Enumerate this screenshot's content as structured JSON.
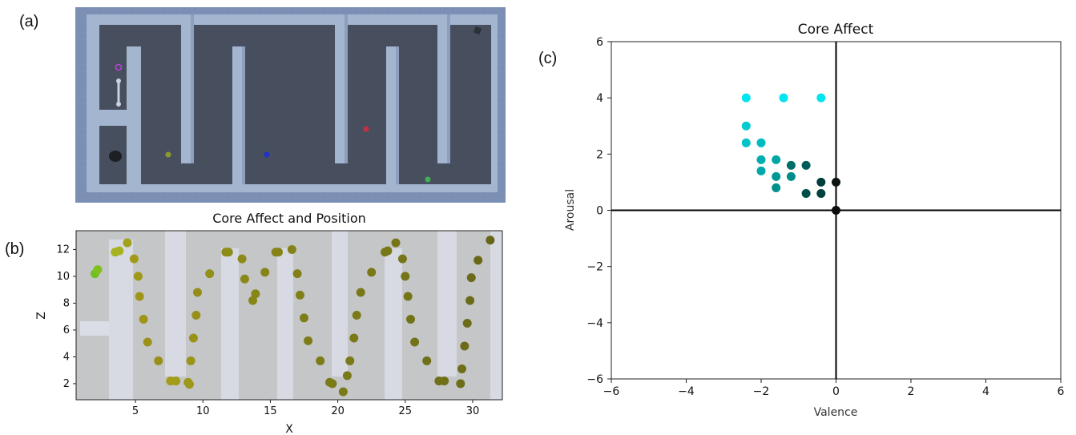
{
  "panels": {
    "a": "(a)",
    "b": "(b)",
    "c": "(c)"
  },
  "colors": {
    "maze_bg": "#7b8fb5",
    "maze_floor": "#474f5f",
    "maze_wall": "#a4b5d0",
    "plot_bg": "#c5c6c8"
  },
  "chart_data": [
    {
      "type": "scatter",
      "panel": "b",
      "title": "Core Affect and Position",
      "xlabel": "X",
      "ylabel": "Z",
      "xlim": [
        0.6,
        32.2
      ],
      "ylim": [
        0.8,
        13.4
      ],
      "xticks": [
        5,
        10,
        15,
        20,
        25,
        30
      ],
      "yticks": [
        2,
        4,
        6,
        8,
        10,
        12
      ],
      "grid": false,
      "points": [
        {
          "x": 2.0,
          "y": 10.2,
          "c": "#6fbf20"
        },
        {
          "x": 2.2,
          "y": 10.5,
          "c": "#80c020"
        },
        {
          "x": 3.5,
          "y": 11.8,
          "c": "#a6b31e"
        },
        {
          "x": 3.8,
          "y": 11.9,
          "c": "#a8b21e"
        },
        {
          "x": 4.4,
          "y": 12.5,
          "c": "#a3a11a"
        },
        {
          "x": 4.9,
          "y": 11.3,
          "c": "#a09a18"
        },
        {
          "x": 5.2,
          "y": 10.0,
          "c": "#a09818"
        },
        {
          "x": 5.3,
          "y": 8.5,
          "c": "#9f9618"
        },
        {
          "x": 5.6,
          "y": 6.8,
          "c": "#9e9418"
        },
        {
          "x": 5.9,
          "y": 5.1,
          "c": "#9c9218"
        },
        {
          "x": 6.7,
          "y": 3.7,
          "c": "#9a9018"
        },
        {
          "x": 7.6,
          "y": 2.2,
          "c": "#a29c18"
        },
        {
          "x": 8.0,
          "y": 2.2,
          "c": "#a29c18"
        },
        {
          "x": 8.9,
          "y": 2.1,
          "c": "#9c9818"
        },
        {
          "x": 9.0,
          "y": 1.95,
          "c": "#9c9818"
        },
        {
          "x": 9.1,
          "y": 3.7,
          "c": "#9a9418"
        },
        {
          "x": 9.3,
          "y": 5.4,
          "c": "#989218"
        },
        {
          "x": 9.5,
          "y": 7.1,
          "c": "#969018"
        },
        {
          "x": 9.6,
          "y": 8.8,
          "c": "#948e18"
        },
        {
          "x": 10.5,
          "y": 10.2,
          "c": "#929018"
        },
        {
          "x": 11.7,
          "y": 11.8,
          "c": "#8e8c18"
        },
        {
          "x": 11.9,
          "y": 11.8,
          "c": "#8e8c18"
        },
        {
          "x": 12.9,
          "y": 11.3,
          "c": "#8c8a18"
        },
        {
          "x": 13.1,
          "y": 9.8,
          "c": "#8a8818"
        },
        {
          "x": 13.7,
          "y": 8.2,
          "c": "#888618"
        },
        {
          "x": 13.9,
          "y": 8.7,
          "c": "#888618"
        },
        {
          "x": 14.6,
          "y": 10.3,
          "c": "#868418"
        },
        {
          "x": 15.4,
          "y": 11.8,
          "c": "#868418"
        },
        {
          "x": 15.6,
          "y": 11.8,
          "c": "#868418"
        },
        {
          "x": 16.6,
          "y": 12.0,
          "c": "#848218"
        },
        {
          "x": 17.0,
          "y": 10.2,
          "c": "#828018"
        },
        {
          "x": 17.2,
          "y": 8.6,
          "c": "#808018"
        },
        {
          "x": 17.5,
          "y": 6.9,
          "c": "#7e7e18"
        },
        {
          "x": 17.8,
          "y": 5.2,
          "c": "#7e7c18"
        },
        {
          "x": 18.7,
          "y": 3.7,
          "c": "#7c7c18"
        },
        {
          "x": 19.4,
          "y": 2.1,
          "c": "#7a7a18"
        },
        {
          "x": 19.6,
          "y": 2.0,
          "c": "#7a7a18"
        },
        {
          "x": 20.4,
          "y": 1.4,
          "c": "#7a7a18"
        },
        {
          "x": 20.7,
          "y": 2.6,
          "c": "#7a7a18"
        },
        {
          "x": 20.9,
          "y": 3.7,
          "c": "#7a7a18"
        },
        {
          "x": 21.2,
          "y": 5.4,
          "c": "#7a7a18"
        },
        {
          "x": 21.4,
          "y": 7.1,
          "c": "#7a7a18"
        },
        {
          "x": 21.7,
          "y": 8.8,
          "c": "#787818"
        },
        {
          "x": 22.5,
          "y": 10.3,
          "c": "#787818"
        },
        {
          "x": 23.5,
          "y": 11.8,
          "c": "#787818"
        },
        {
          "x": 23.7,
          "y": 11.9,
          "c": "#787818"
        },
        {
          "x": 24.3,
          "y": 12.5,
          "c": "#767618"
        },
        {
          "x": 24.8,
          "y": 11.3,
          "c": "#767618"
        },
        {
          "x": 25.0,
          "y": 10.0,
          "c": "#747418"
        },
        {
          "x": 25.2,
          "y": 8.5,
          "c": "#747418"
        },
        {
          "x": 25.4,
          "y": 6.8,
          "c": "#727218"
        },
        {
          "x": 25.7,
          "y": 5.1,
          "c": "#727218"
        },
        {
          "x": 26.6,
          "y": 3.7,
          "c": "#707018"
        },
        {
          "x": 27.5,
          "y": 2.2,
          "c": "#707018"
        },
        {
          "x": 27.9,
          "y": 2.2,
          "c": "#707018"
        },
        {
          "x": 29.1,
          "y": 2.0,
          "c": "#6e6e18"
        },
        {
          "x": 29.2,
          "y": 3.1,
          "c": "#6e6e18"
        },
        {
          "x": 29.4,
          "y": 4.8,
          "c": "#6c6c18"
        },
        {
          "x": 29.6,
          "y": 6.5,
          "c": "#6c6c18"
        },
        {
          "x": 29.8,
          "y": 8.2,
          "c": "#6a6a18"
        },
        {
          "x": 29.9,
          "y": 9.9,
          "c": "#6a6a18"
        },
        {
          "x": 30.4,
          "y": 11.2,
          "c": "#686818"
        },
        {
          "x": 31.3,
          "y": 12.7,
          "c": "#666618"
        }
      ]
    },
    {
      "type": "scatter",
      "panel": "c",
      "title": "Core Affect",
      "xlabel": "Valence",
      "ylabel": "Arousal",
      "xlim": [
        -6,
        6
      ],
      "ylim": [
        -6,
        6
      ],
      "xticks": [
        -6,
        -4,
        -2,
        0,
        2,
        4,
        6
      ],
      "yticks": [
        -6,
        -4,
        -2,
        0,
        2,
        4,
        6
      ],
      "grid": false,
      "points": [
        {
          "x": -2.4,
          "y": 4.0,
          "c": "#00e5ee"
        },
        {
          "x": -1.4,
          "y": 4.0,
          "c": "#00e5ee"
        },
        {
          "x": -0.4,
          "y": 4.0,
          "c": "#00e5ee"
        },
        {
          "x": -2.4,
          "y": 3.0,
          "c": "#00ccd2"
        },
        {
          "x": -2.4,
          "y": 2.4,
          "c": "#00c4c8"
        },
        {
          "x": -2.0,
          "y": 2.4,
          "c": "#00bcc0"
        },
        {
          "x": -2.0,
          "y": 1.8,
          "c": "#00aeb0"
        },
        {
          "x": -1.6,
          "y": 1.8,
          "c": "#00a6a6"
        },
        {
          "x": -2.0,
          "y": 1.4,
          "c": "#00a8aa"
        },
        {
          "x": -1.6,
          "y": 1.2,
          "c": "#009896"
        },
        {
          "x": -1.2,
          "y": 1.2,
          "c": "#008c88"
        },
        {
          "x": -1.6,
          "y": 0.8,
          "c": "#00908e"
        },
        {
          "x": -1.2,
          "y": 1.6,
          "c": "#006e6a"
        },
        {
          "x": -0.8,
          "y": 1.6,
          "c": "#005c58"
        },
        {
          "x": -0.8,
          "y": 0.6,
          "c": "#004e4a"
        },
        {
          "x": -0.4,
          "y": 1.0,
          "c": "#003e3b"
        },
        {
          "x": -0.4,
          "y": 0.6,
          "c": "#00403d"
        },
        {
          "x": 0.0,
          "y": 1.0,
          "c": "#0d1414"
        },
        {
          "x": 0.0,
          "y": 0.0,
          "c": "#0d0d0d"
        }
      ]
    }
  ]
}
